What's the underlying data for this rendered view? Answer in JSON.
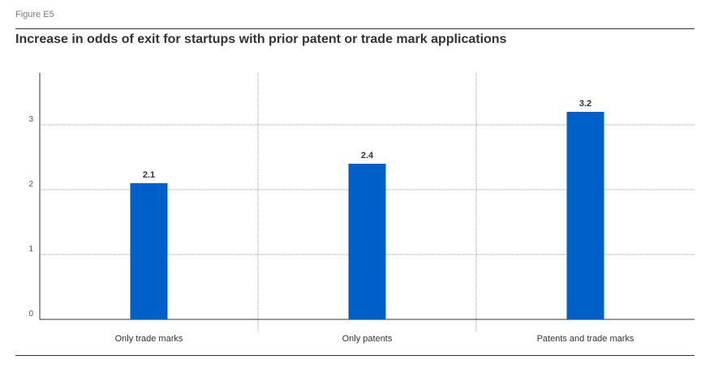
{
  "figure_label": "Figure E5",
  "title": "Increase in odds of exit for startups with prior patent or trade mark applications",
  "chart_data": {
    "type": "bar",
    "categories": [
      "Only trade marks",
      "Only patents",
      "Patents and trade marks"
    ],
    "values": [
      2.1,
      2.4,
      3.2
    ],
    "value_labels": [
      "2.1",
      "2.4",
      "3.2"
    ],
    "title": "Increase in odds of exit for startups with prior patent or trade mark applications",
    "xlabel": "",
    "ylabel": "",
    "ylim": [
      0,
      3.8
    ],
    "yticks": [
      0,
      1,
      2,
      3
    ],
    "grid": true,
    "bar_color": "#0060c9"
  }
}
